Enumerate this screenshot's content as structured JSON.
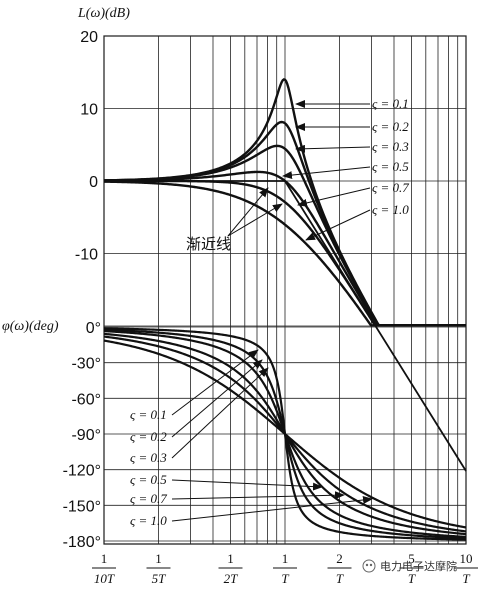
{
  "chart_data": {
    "type": "line",
    "magnitude": {
      "ylabel": "L(ω)(dB)",
      "ylim": [
        -20,
        20
      ],
      "yticks": [
        "20",
        "10",
        "0",
        "-10"
      ],
      "series": [
        {
          "name": "ς = 0.1",
          "zeta": 0.1
        },
        {
          "name": "ς = 0.2",
          "zeta": 0.2
        },
        {
          "name": "ς = 0.3",
          "zeta": 0.3
        },
        {
          "name": "ς = 0.5",
          "zeta": 0.5
        },
        {
          "name": "ς = 0.7",
          "zeta": 0.7
        },
        {
          "name": "ς = 1.0",
          "zeta": 1.0
        }
      ],
      "asymptote_label": "渐近线"
    },
    "phase": {
      "ylabel": "φ(ω)(deg)",
      "ylim": [
        -180,
        0
      ],
      "yticks": [
        "0°",
        "-30°",
        "-60°",
        "-90°",
        "-120°",
        "-150°",
        "-180°"
      ],
      "series": [
        {
          "name": "ς = 0.1",
          "zeta": 0.1
        },
        {
          "name": "ς = 0.2",
          "zeta": 0.2
        },
        {
          "name": "ς = 0.3",
          "zeta": 0.3
        },
        {
          "name": "ς = 0.5",
          "zeta": 0.5
        },
        {
          "name": "ς = 0.7",
          "zeta": 0.7
        },
        {
          "name": "ς = 1.0",
          "zeta": 1.0
        }
      ]
    },
    "x_axis": {
      "scale": "log",
      "range": [
        0.1,
        10
      ],
      "ticks": [
        {
          "value": 0.1,
          "num": "1",
          "den": "10T"
        },
        {
          "value": 0.2,
          "num": "1",
          "den": "5T"
        },
        {
          "value": 0.5,
          "num": "1",
          "den": "2T"
        },
        {
          "value": 1,
          "num": "1",
          "den": "T"
        },
        {
          "value": 2,
          "num": "2",
          "den": "T"
        },
        {
          "value": 5,
          "num": "5",
          "den": "T"
        },
        {
          "value": 10,
          "num": "10",
          "den": "T"
        }
      ]
    },
    "grid": true
  },
  "watermark": "电力电子达摩院"
}
